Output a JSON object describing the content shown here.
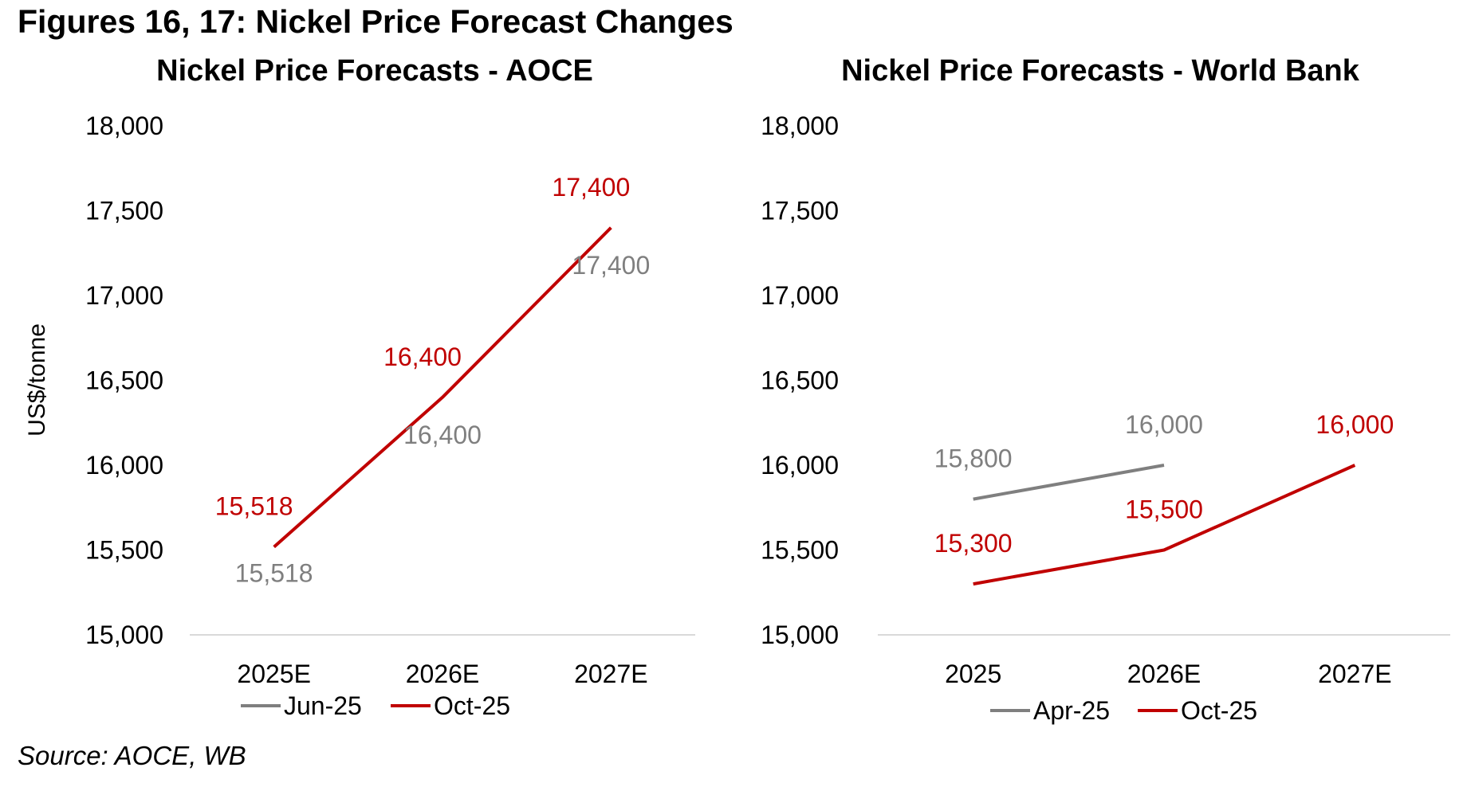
{
  "figure_title": "Figures 16, 17: Nickel Price Forecast Changes",
  "source": "Source: AOCE, WB",
  "colors": {
    "grey": "#7f7f7f",
    "red": "#c00000",
    "axis": "#d9d9d9"
  },
  "chart_data": [
    {
      "id": "aoce",
      "type": "line",
      "title": "Nickel Price Forecasts - AOCE",
      "ylabel": "US$/tonne",
      "xlabel": "",
      "categories": [
        "2025E",
        "2026E",
        "2027E"
      ],
      "ylim": [
        15000,
        18000
      ],
      "yticks": [
        15000,
        15500,
        16000,
        16500,
        17000,
        17500,
        18000
      ],
      "ytick_labels": [
        "15,000",
        "15,500",
        "16,000",
        "16,500",
        "17,000",
        "17,500",
        "18,000"
      ],
      "grid": false,
      "legend": "bottom",
      "series": [
        {
          "name": "Jun-25",
          "color": "#7f7f7f",
          "values": [
            15518,
            16400,
            17400
          ],
          "labels": [
            "15,518",
            "16,400",
            "17,400"
          ],
          "line_visible": false
        },
        {
          "name": "Oct-25",
          "color": "#c00000",
          "values": [
            15518,
            16400,
            17400
          ],
          "labels": [
            "15,518",
            "16,400",
            "17,400"
          ],
          "line_visible": true
        }
      ]
    },
    {
      "id": "wb",
      "type": "line",
      "title": "Nickel Price Forecasts - World Bank",
      "ylabel": "",
      "xlabel": "",
      "categories": [
        "2025",
        "2026E",
        "2027E"
      ],
      "ylim": [
        15000,
        18000
      ],
      "yticks": [
        15000,
        15500,
        16000,
        16500,
        17000,
        17500,
        18000
      ],
      "ytick_labels": [
        "15,000",
        "15,500",
        "16,000",
        "16,500",
        "17,000",
        "17,500",
        "18,000"
      ],
      "grid": false,
      "legend": "bottom",
      "series": [
        {
          "name": "Apr-25",
          "color": "#7f7f7f",
          "values": [
            15800,
            16000,
            null
          ],
          "labels": [
            "15,800",
            "16,000",
            ""
          ],
          "line_visible": true
        },
        {
          "name": "Oct-25",
          "color": "#c00000",
          "values": [
            15300,
            15500,
            16000
          ],
          "labels": [
            "15,300",
            "15,500",
            "16,000"
          ],
          "line_visible": true
        }
      ]
    }
  ]
}
